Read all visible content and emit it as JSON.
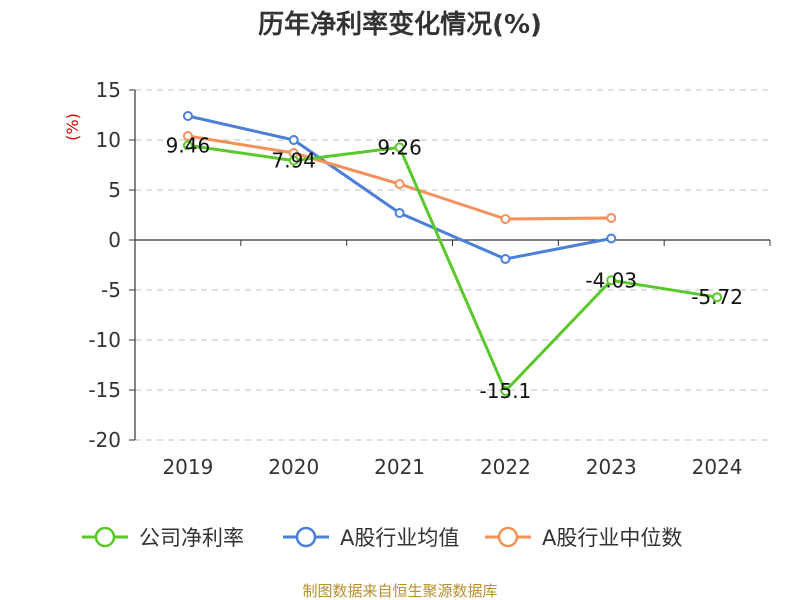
{
  "chart_data": {
    "type": "line",
    "title": "历年净利率变化情况(%)",
    "ylabel": "(%)",
    "xlabel": "",
    "categories": [
      "2019",
      "2020",
      "2021",
      "2022",
      "2023",
      "2024"
    ],
    "ylim": [
      -20,
      15
    ],
    "yticks": [
      15,
      10,
      5,
      0,
      -5,
      -10,
      -15,
      -20
    ],
    "ytick_labels": [
      "15",
      "10",
      "5",
      "0",
      "-5",
      "-10",
      "-15",
      "-20"
    ],
    "grid": true,
    "legend": "bottom",
    "series": [
      {
        "name": "公司净利率",
        "color": "#5ac72a",
        "values": [
          9.46,
          7.94,
          9.26,
          -15.1,
          -4.03,
          -5.72
        ],
        "labels": [
          "9.46",
          "7.94",
          "9.26",
          "-15.1",
          "-4.03",
          "-5.72"
        ]
      },
      {
        "name": "A股行业均值",
        "color": "#4b7fd8",
        "values": [
          12.4,
          10.0,
          2.7,
          -1.9,
          0.15,
          null
        ]
      },
      {
        "name": "A股行业中位数",
        "color": "#f4905a",
        "values": [
          10.4,
          8.7,
          5.6,
          2.1,
          2.2,
          null
        ]
      }
    ]
  },
  "footer": {
    "source": "制图数据来自恒生聚源数据库"
  }
}
